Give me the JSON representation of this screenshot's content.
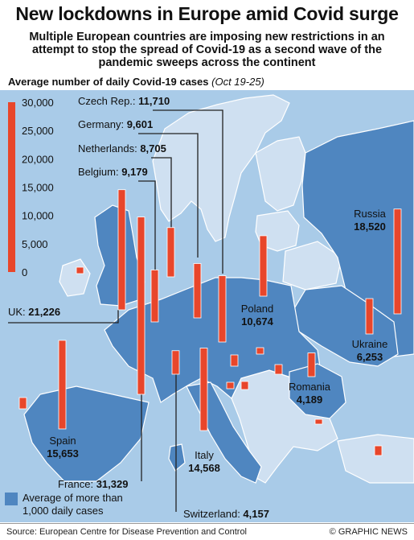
{
  "title": "New lockdowns in Europe amid Covid surge",
  "subtitle": "Multiple European countries are imposing new restrictions in an attempt to stop the spread of Covid-19 as a second wave of the pandemic sweeps across the continent",
  "chart_heading": "Average number of daily Covid-19 cases",
  "chart_period": "(Oct 19-25)",
  "legend_text_1": "Average of more than",
  "legend_text_2": "1,000 daily cases",
  "source": "Source: European Centre for Disease Prevention and Control",
  "credit": "© GRAPHIC NEWS",
  "colors": {
    "bar": "#e8462b",
    "ocean": "#a9cbe8",
    "land_high": "#4f86c0",
    "land_low": "#cfe0f1",
    "border": "#ffffff"
  },
  "chart_data": {
    "type": "bar",
    "title": "Average number of daily Covid-19 cases",
    "subtitle": "(Oct 19-25)",
    "ylim": [
      0,
      30000
    ],
    "yticks": [
      0,
      5000,
      10000,
      15000,
      20000,
      25000,
      30000
    ],
    "ytick_labels": [
      "0",
      "5,000",
      "10,000",
      "15,000",
      "20,000",
      "25,000",
      "30,000"
    ],
    "categories": [
      "UK",
      "France",
      "Spain",
      "Belgium",
      "Netherlands",
      "Germany",
      "Czech Rep.",
      "Switzerland",
      "Italy",
      "Poland",
      "Russia",
      "Ukraine",
      "Romania"
    ],
    "values": [
      21226,
      31329,
      15653,
      9179,
      8705,
      9601,
      11710,
      4157,
      14568,
      10674,
      18520,
      6253,
      4189
    ],
    "labels": [
      {
        "country": "UK",
        "value": "21,226"
      },
      {
        "country": "France",
        "value": "31,329"
      },
      {
        "country": "Spain",
        "value": "15,653"
      },
      {
        "country": "Belgium",
        "value": "9,179"
      },
      {
        "country": "Netherlands",
        "value": "8,705"
      },
      {
        "country": "Germany",
        "value": "9,601"
      },
      {
        "country": "Czech Rep.",
        "value": "11,710"
      },
      {
        "country": "Switzerland",
        "value": "4,157"
      },
      {
        "country": "Italy",
        "value": "14,568"
      },
      {
        "country": "Poland",
        "value": "10,674"
      },
      {
        "country": "Russia",
        "value": "18,520"
      },
      {
        "country": "Ukraine",
        "value": "6,253"
      },
      {
        "country": "Romania",
        "value": "4,189"
      }
    ]
  }
}
